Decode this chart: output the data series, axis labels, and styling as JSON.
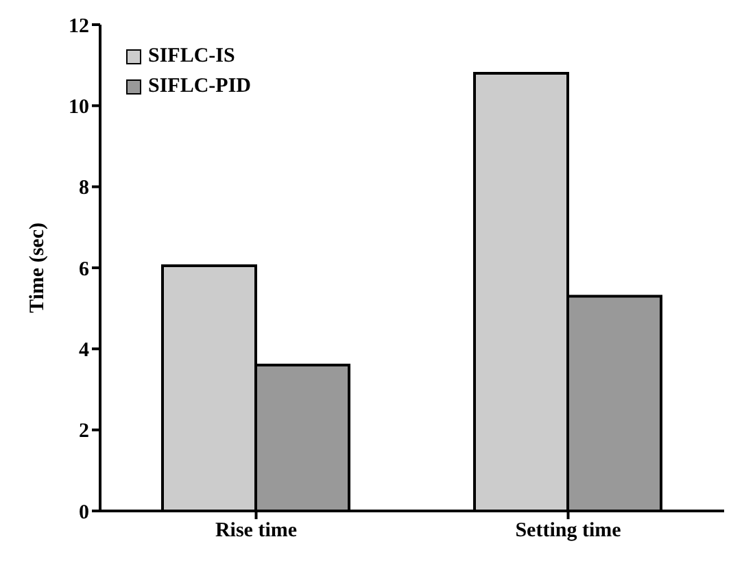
{
  "chart_data": {
    "type": "bar",
    "ylabel": "Time (sec)",
    "categories": [
      "Rise time",
      "Setting time"
    ],
    "series": [
      {
        "name": "SIFLC-IS",
        "color": "#cccccc",
        "values": [
          6.05,
          10.8
        ]
      },
      {
        "name": "SIFLC-PID",
        "color": "#999999",
        "values": [
          3.6,
          5.3
        ]
      }
    ],
    "ylim": [
      0,
      12
    ],
    "yticks": [
      0,
      2,
      4,
      6,
      8,
      10,
      12
    ],
    "grid": false,
    "legend": "top left"
  }
}
